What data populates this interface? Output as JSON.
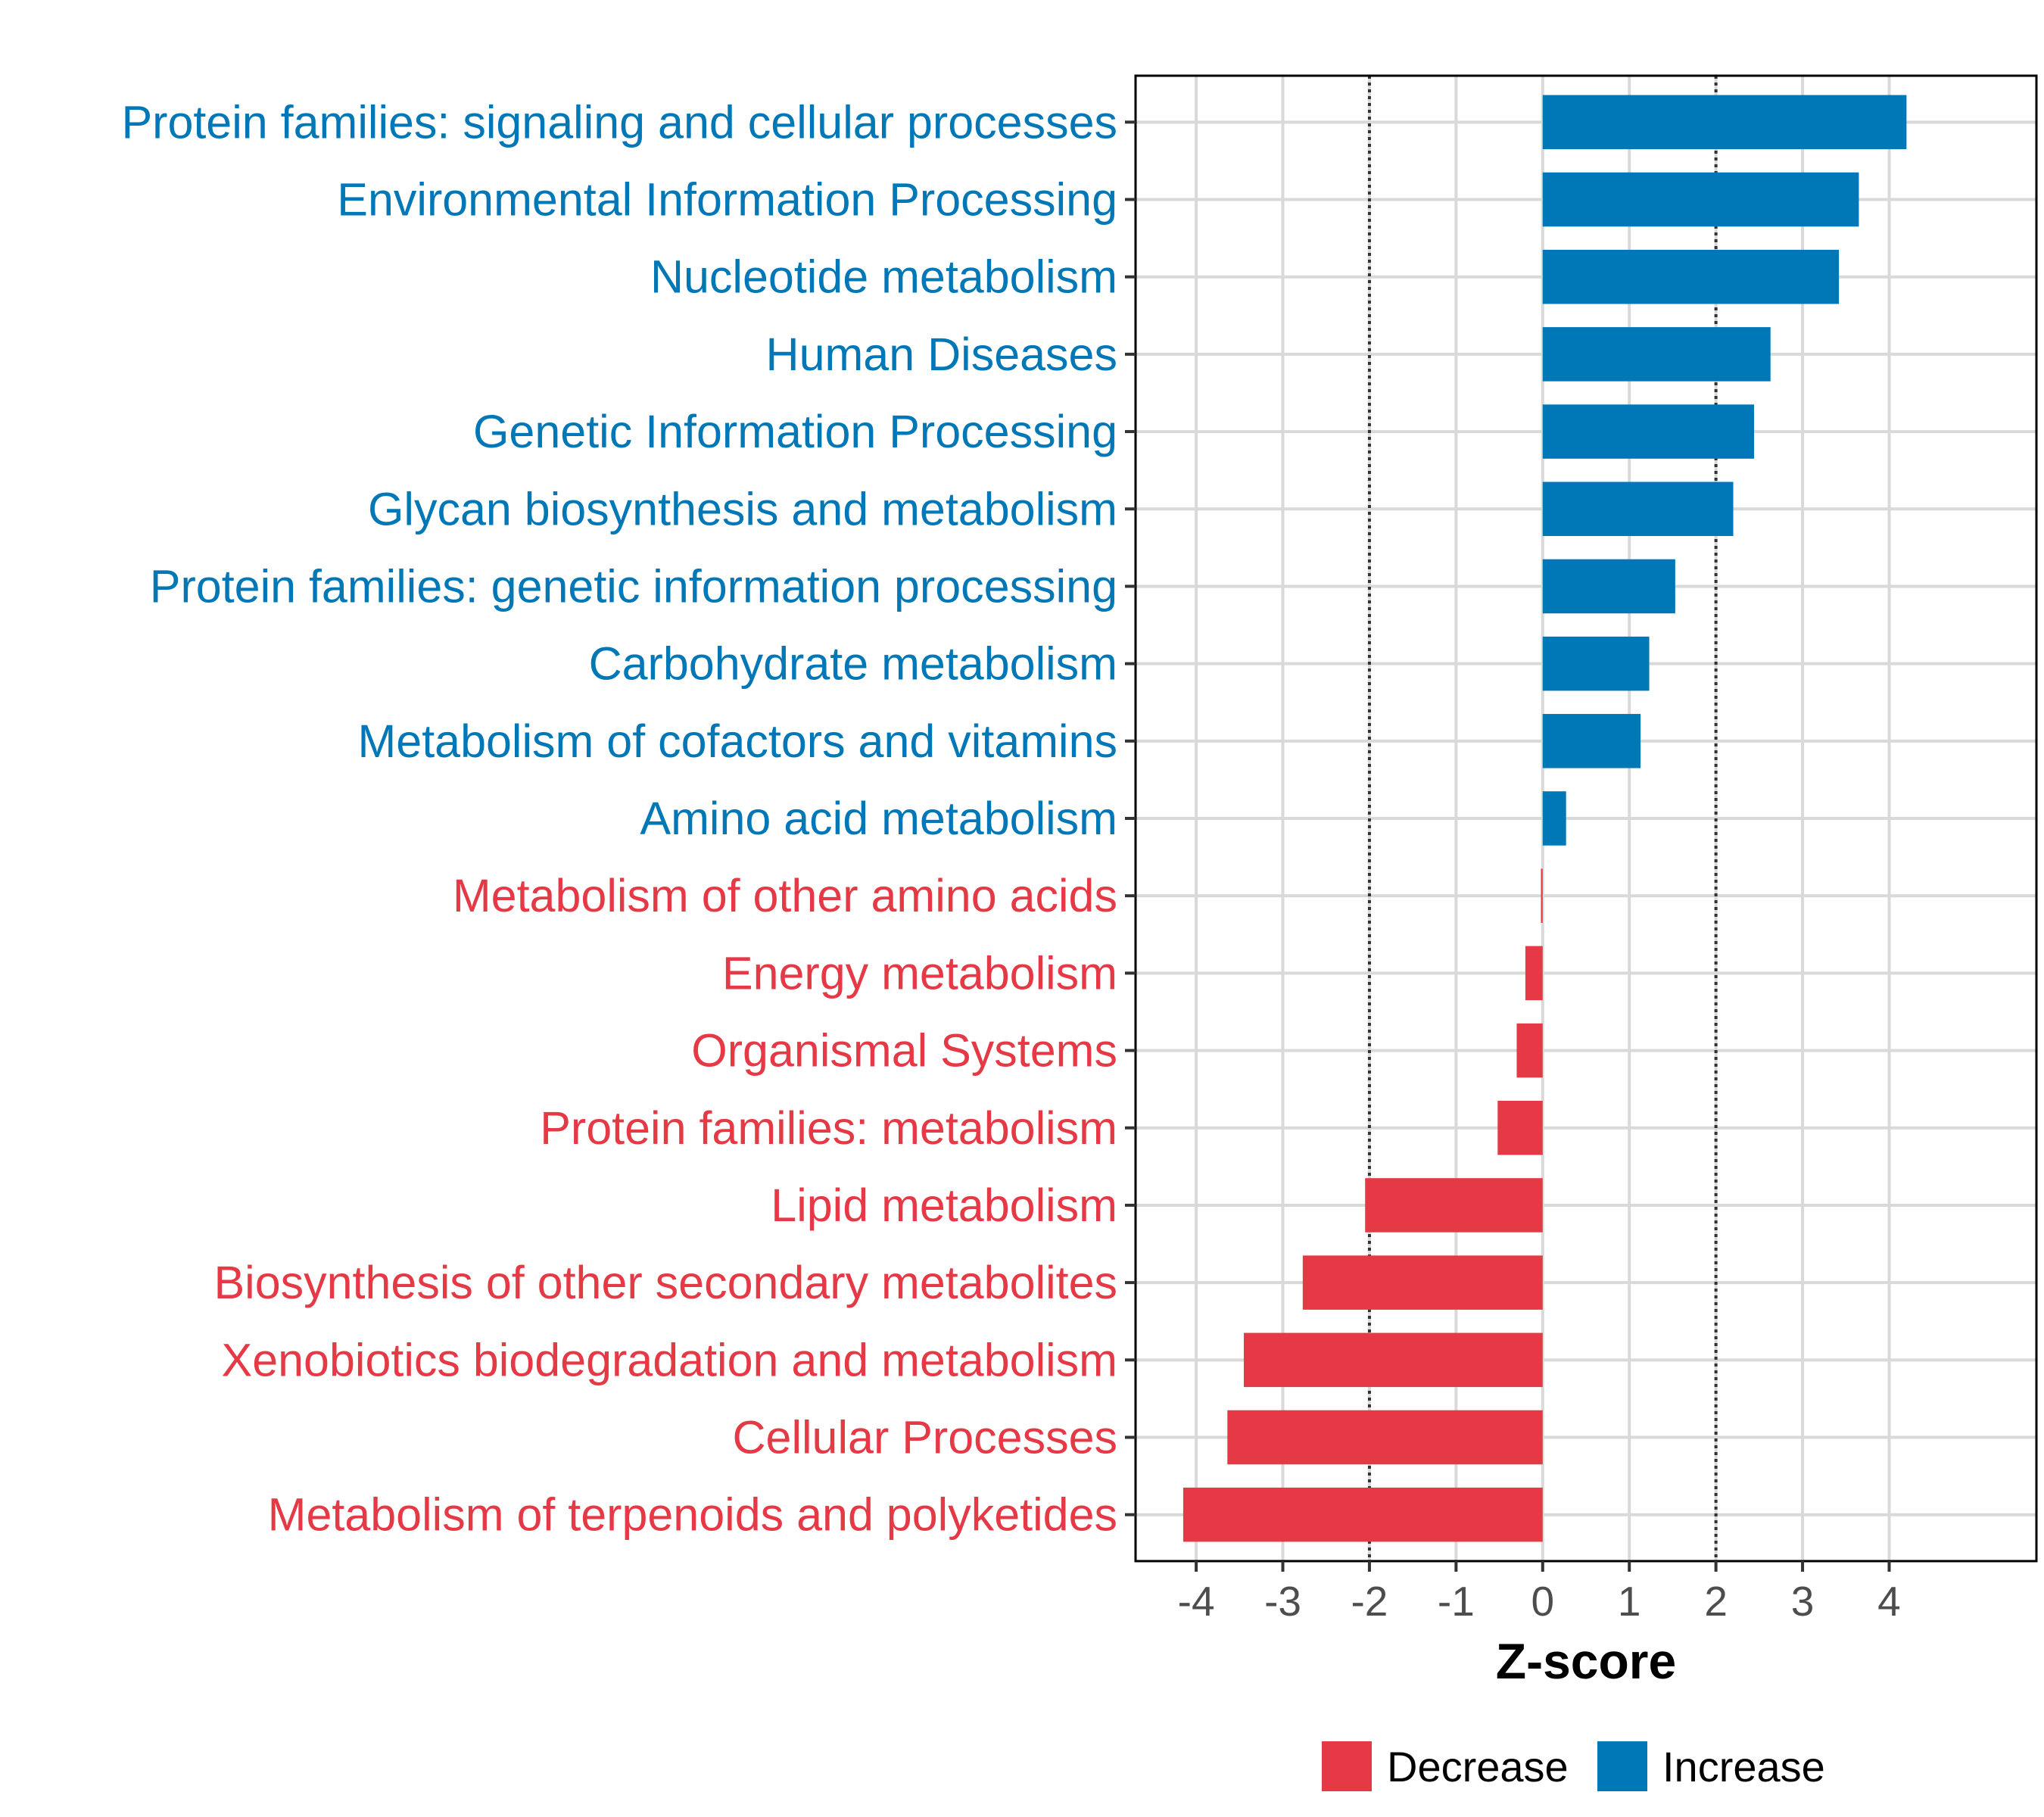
{
  "chart_data": {
    "type": "bar",
    "orientation": "horizontal",
    "title": "",
    "xlabel": "Z-score",
    "ylabel": "",
    "xlim": [
      -4.7,
      5.7
    ],
    "xticks": [
      -4,
      -3,
      -2,
      -1,
      0,
      1,
      2,
      3,
      4
    ],
    "reference_lines": [
      -2,
      2
    ],
    "grid": true,
    "legend_position": "bottom",
    "categories": [
      "Protein families: signaling and cellular processes",
      "Environmental Information Processing",
      "Nucleotide metabolism",
      "Human Diseases",
      "Genetic Information Processing",
      "Glycan biosynthesis and metabolism",
      "Protein families: genetic information processing",
      "Carbohydrate metabolism",
      "Metabolism of cofactors and vitamins",
      "Amino acid metabolism",
      "Metabolism of other amino acids",
      "Energy metabolism",
      "Organismal Systems",
      "Protein families: metabolism",
      "Lipid metabolism",
      "Biosynthesis of other secondary metabolites",
      "Xenobiotics biodegradation and metabolism",
      "Cellular Processes",
      "Metabolism of terpenoids and polyketides"
    ],
    "values": [
      4.2,
      3.65,
      3.42,
      2.63,
      2.44,
      2.2,
      1.53,
      1.23,
      1.13,
      0.27,
      -0.02,
      -0.2,
      -0.3,
      -0.52,
      -2.05,
      -2.77,
      -3.45,
      -3.64,
      -4.15
    ],
    "groups": [
      "Increase",
      "Increase",
      "Increase",
      "Increase",
      "Increase",
      "Increase",
      "Increase",
      "Increase",
      "Increase",
      "Increase",
      "Decrease",
      "Decrease",
      "Decrease",
      "Decrease",
      "Decrease",
      "Decrease",
      "Decrease",
      "Decrease",
      "Decrease"
    ],
    "legend": [
      {
        "label": "Decrease",
        "color": "#E63946"
      },
      {
        "label": "Increase",
        "color": "#0077B6"
      }
    ],
    "colors": {
      "Decrease": "#E63946",
      "Increase": "#0077B6"
    }
  }
}
